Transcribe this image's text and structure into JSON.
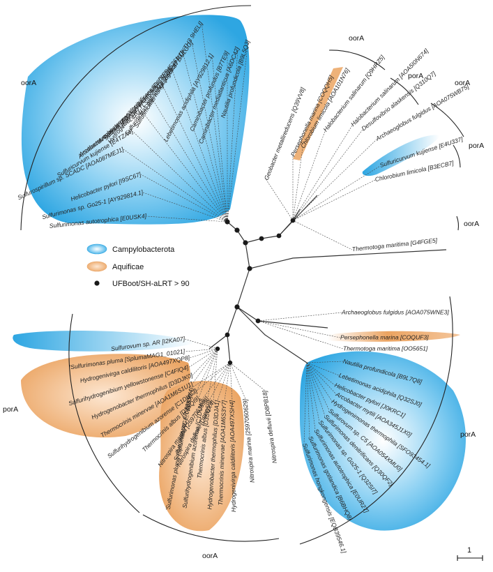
{
  "colors": {
    "campylobacterota": "#3aaee6",
    "aquificae": "#e9a566",
    "red_label": "#e0302f",
    "node": "#1a1a1a",
    "branch": "#333333"
  },
  "legend": {
    "campylobacterota": "Campylobacterota",
    "aquificae": "Aquificae",
    "support": "UFBoot/SH-aLRT > 90"
  },
  "scale_bar": {
    "label": "1"
  },
  "clade_labels": {
    "oor_top_left": "oorA",
    "oor_top_right_a": "oorA",
    "por_top_right_a": "porA",
    "oor_top_right_b": "oorA",
    "por_top_right_b": "porA",
    "oor_mid_right": "oorA",
    "por_bottom_left": "porA",
    "oor_bottom": "oorA",
    "por_bottom_right": "porA"
  },
  "leaves_top_left": [
    "Nautilia profundicola [B9L5Q3]",
    "Caminibacter mediatlanticus [A6DC42]",
    "Caminibacter profundus [B7TE9]",
    "Lebetimonas acidiphila [AY929812.1]",
    "Sulfurimonas hongkongensis [TOKTH3 9HELI]",
    "Sulfurimonas gotlandica [B6BK87 SULGG]",
    "Hydrogenimonas thermophila [SFP45261.1]",
    "Sulfurimonas denitrificans [Q30RQ0]",
    "Arcobacter mytili [AOA345JK51]",
    "Arcobacter marinus [AOA347TLS9]",
    "Arcobacter butzleri [E6L4P4]",
    "Sulfuricurvum kujiense [E4TZA4]",
    "Sulfurospirillum sp. SCADC [AOA087MEJ1]",
    "Helicobacter pylori [I9SC67]",
    "Sulfurimonas sp. Go25-1 [AY929814.1]",
    "Sulfurimonas autotrophica [E0USK4]"
  ],
  "leaves_top_right": [
    "Geobacter metallireducens [Q39VV8]",
    "Persephonella marina [COQQH5]",
    "Chlorobium limicola [AOA101N76]",
    "Halobacterium salinarum [Q9HRZ5]",
    "Halobacterium salinarum [AOA5I0N674]",
    "Desulfovibrio alaskensis [Q310Q7]",
    "Archaeoglobus fulgidus [AOA075WB75]",
    "Sulfuricurvum kujiense [E4U337]",
    "Chlorobium limicola [B3ECB7]",
    "Thermotoga maritima [G4FGE5]"
  ],
  "leaves_mid_right": [
    "Archaeoglobus fulgidus [AOA075WNE3]",
    "Persephonella marina [COQUF3]",
    "Thermotoga maritima [OO5651]"
  ],
  "leaves_bottom_left": [
    "Sulfurovum sp. AR [I2KA07]",
    "'Sulfurimonas pluma [SplumaMAG1_01021]",
    "Hydrogenivirga caldilitoris [AOA497XQP8]",
    "Sulfurihydrogenibium yellowstonense [C4FIQ4]",
    "Hydrogenobacter thermophilus [D3DJK0]",
    "Thermocrinis minervae [AOA1M6S1U1]",
    "Sulfurihydrogenibium azorense [C1DU53]",
    "Thermocrinis albus [D3SQI9]",
    "Nitrospira marina [2597063698]",
    "Nitrospira defluvii [D8PBX4]"
  ],
  "leaves_bottom": [
    "Sulfurovum sp. AR [I2K9Y4]",
    "'Sulfurimonas pluma [SplumaMAG1_01030]",
    "Sulfurihydrogenibium azorense [C1DU40]",
    "Thermocrinis albus [D3SQ59]",
    "Hydrogenobacter thermophilus [D3DJA1]",
    "Thermocrinis minervae [AOA1M6S3Y7]",
    "Hydrogenivirga caldilitoris [AOA497XSH4]",
    "Nitrospira marina [2597060629]",
    "Nitrospira defluvii [D8PB18]"
  ],
  "leaves_bottom_right": [
    "Nautilia profundicola [B9L7Q8]",
    "Lebetimonas acidiphila [Q32SJ0]",
    "Helicobacter pylori [J0KRC1]",
    "Arcobacter mytili [AOA345J1X0]",
    "Hydrogenimonas thermophila [SFO93454.1]",
    "Sulfurovum sp. C5 [AOA054XMU0]",
    "Sulfurimonas denitrificans [Q30QF2]",
    "Sulfurimonas sp. Go25-1 [Q32SI7]",
    "Sulfurimonas autotrophica [E0UR27]",
    "Sulfurimonas gotlandica [B6BHQ8]",
    "Sulfurimonas hongkongensis [EQB39546.1]"
  ]
}
